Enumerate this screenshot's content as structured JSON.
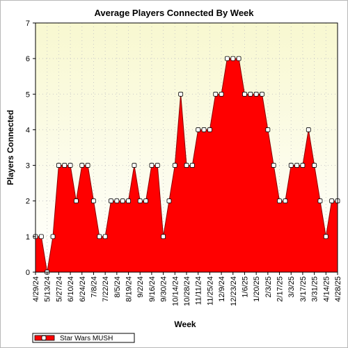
{
  "chart_data": {
    "type": "area",
    "title": "Average Players Connected By Week",
    "xlabel": "Week",
    "ylabel": "Players Connected",
    "ylim": [
      0,
      7
    ],
    "yticks": [
      0,
      1,
      2,
      3,
      4,
      5,
      6,
      7
    ],
    "grid": true,
    "legend_position": "bottom-left",
    "x_tick_labels": [
      "4/29/24",
      "5/13/24",
      "5/27/24",
      "6/10/24",
      "6/24/24",
      "7/8/24",
      "7/22/24",
      "8/5/24",
      "8/19/24",
      "9/2/24",
      "9/16/24",
      "9/30/24",
      "10/14/24",
      "10/28/24",
      "11/11/24",
      "11/25/24",
      "12/9/24",
      "12/23/24",
      "1/6/25",
      "1/20/25",
      "2/3/25",
      "2/17/25",
      "3/3/25",
      "3/17/25",
      "3/31/25",
      "4/14/25",
      "4/28/25"
    ],
    "series": [
      {
        "name": "Star Wars MUSH",
        "color": "#ff0000",
        "values": [
          1,
          1,
          0,
          1,
          3,
          3,
          3,
          2,
          3,
          3,
          2,
          1,
          1,
          2,
          2,
          2,
          2,
          3,
          2,
          2,
          3,
          3,
          1,
          2,
          3,
          5,
          3,
          3,
          4,
          4,
          4,
          5,
          5,
          6,
          6,
          6,
          5,
          5,
          5,
          5,
          4,
          3,
          2,
          2,
          3,
          3,
          3,
          4,
          3,
          2,
          1,
          2,
          2
        ]
      }
    ]
  },
  "colors": {
    "plot_background_top": "#f8f8d0",
    "plot_background_bottom": "#ffffff",
    "area_fill": "#ff0000",
    "marker_fill": "#ffffff"
  }
}
